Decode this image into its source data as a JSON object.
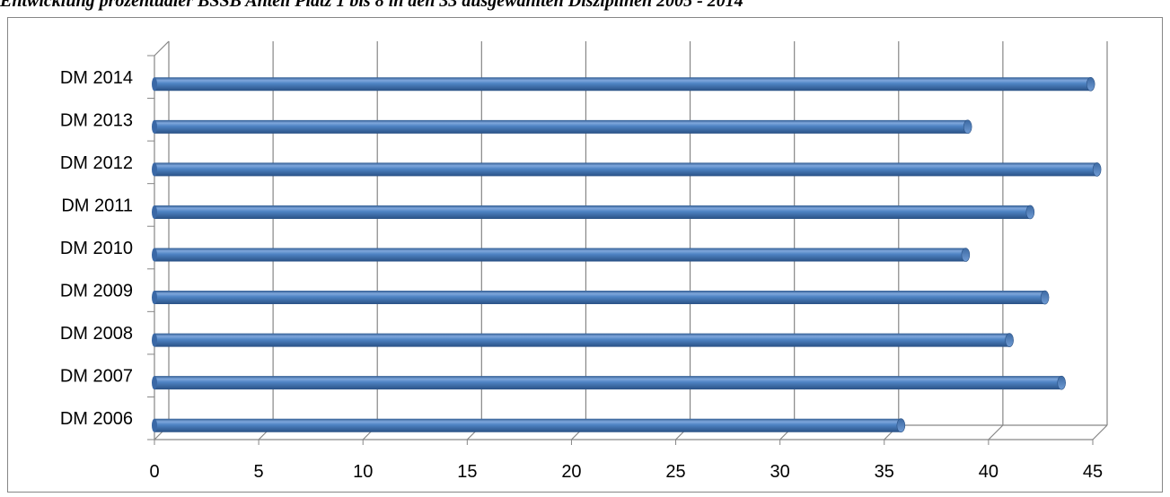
{
  "caption": "Entwicklung prozentualer BSSB Anteil Platz 1 bis 8 in den 33 ausgewählten Disziplinen 2005 - 2014",
  "chart_data": {
    "type": "bar",
    "orientation": "horizontal",
    "style": "3d-cylinder",
    "categories": [
      "DM 2006",
      "DM 2007",
      "DM 2008",
      "DM 2009",
      "DM 2010",
      "DM 2011",
      "DM 2012",
      "DM 2013",
      "DM 2014"
    ],
    "series": [
      {
        "values": [
          35.8,
          43.5,
          41.0,
          42.7,
          38.9,
          42.0,
          45.2,
          39.0,
          44.9
        ]
      }
    ],
    "x_ticks": [
      "0",
      "5",
      "10",
      "15",
      "20",
      "25",
      "30",
      "35",
      "40",
      "45"
    ],
    "xlim": [
      0,
      45
    ],
    "title": "",
    "xlabel": "",
    "ylabel": "",
    "grid": true,
    "legend": "none",
    "colors": {
      "bar": "#4a7ebb",
      "bar_light": "#8fb3e3",
      "bar_dark": "#2c5486",
      "grid": "#868686"
    }
  }
}
